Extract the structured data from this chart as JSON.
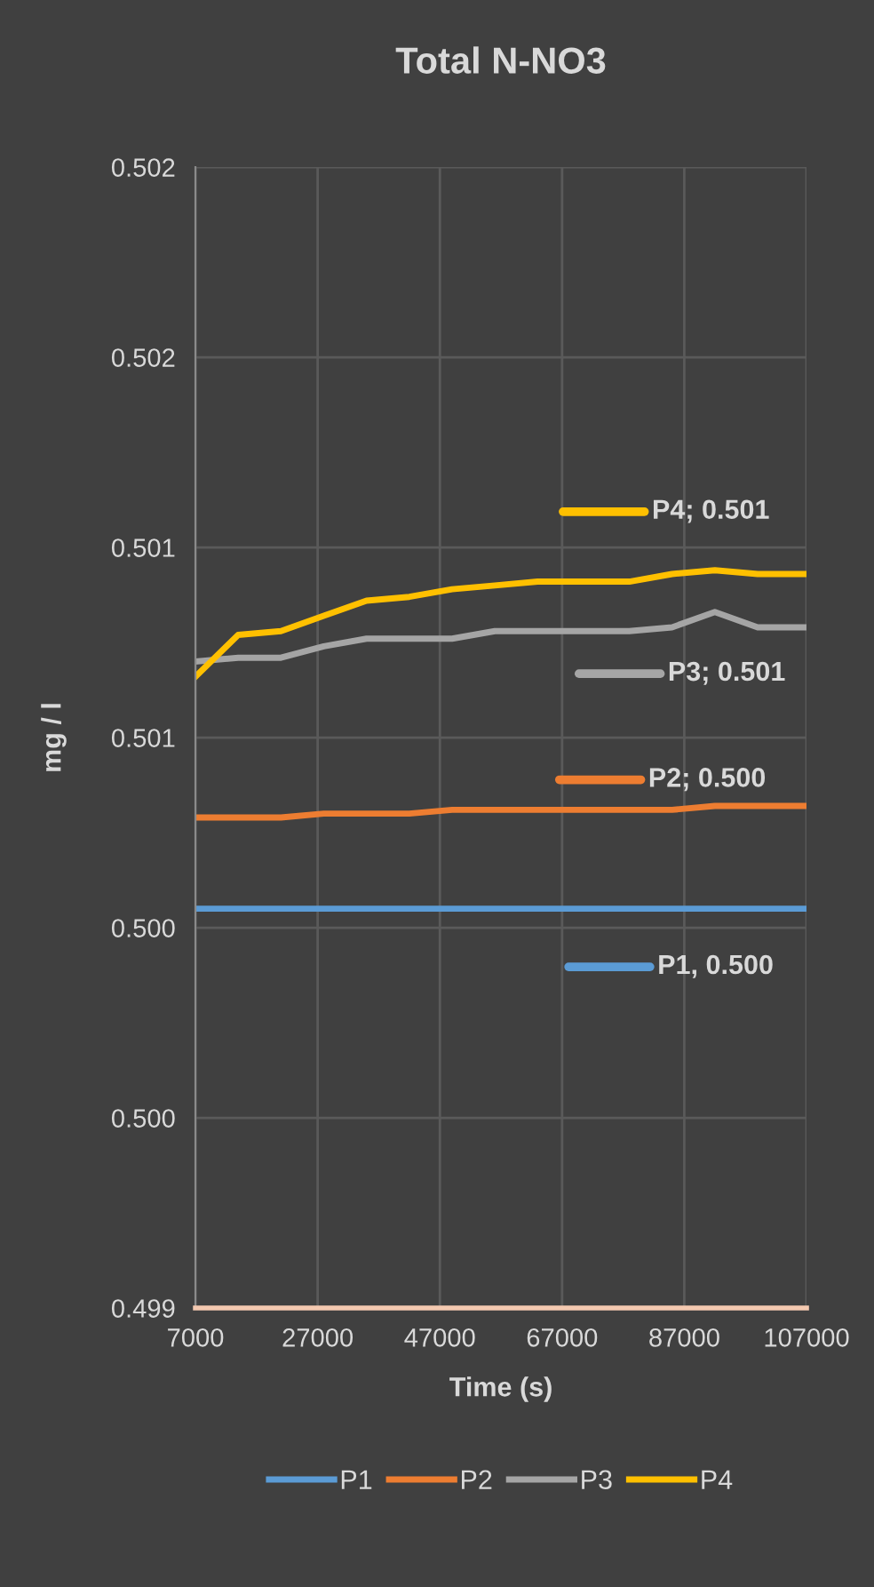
{
  "chart_data": {
    "type": "line",
    "title": "Total N-NO3",
    "xlabel": "Time (s)",
    "ylabel": "mg / l",
    "x": [
      7000,
      14000,
      21000,
      28000,
      35000,
      42000,
      49000,
      56000,
      63000,
      70000,
      78000,
      85000,
      92000,
      99000,
      107000
    ],
    "series": [
      {
        "name": "P1",
        "color": "#5b9bd5",
        "values": [
          0.50005,
          0.50005,
          0.50005,
          0.50005,
          0.50005,
          0.50005,
          0.50005,
          0.50005,
          0.50005,
          0.50005,
          0.50005,
          0.50005,
          0.50005,
          0.50005,
          0.50005
        ]
      },
      {
        "name": "P2",
        "color": "#ed7d31",
        "values": [
          0.50029,
          0.50029,
          0.50029,
          0.5003,
          0.5003,
          0.5003,
          0.50031,
          0.50031,
          0.50031,
          0.50031,
          0.50031,
          0.50031,
          0.50032,
          0.50032,
          0.50032
        ]
      },
      {
        "name": "P3",
        "color": "#a5a5a5",
        "values": [
          0.5007,
          0.50071,
          0.50071,
          0.50074,
          0.50076,
          0.50076,
          0.50076,
          0.50078,
          0.50078,
          0.50078,
          0.50078,
          0.50079,
          0.50083,
          0.50079,
          0.50079
        ]
      },
      {
        "name": "P4",
        "color": "#ffc000",
        "values": [
          0.50066,
          0.50077,
          0.50078,
          0.50082,
          0.50086,
          0.50087,
          0.50089,
          0.5009,
          0.50091,
          0.50091,
          0.50091,
          0.50093,
          0.50094,
          0.50093,
          0.50093
        ]
      }
    ],
    "annotations": [
      "P1, 0.500",
      "P2; 0.500",
      "P3; 0.501",
      "P4; 0.501"
    ],
    "xlim": [
      7000,
      107000
    ],
    "xticks": [
      7000,
      27000,
      47000,
      67000,
      87000,
      107000
    ],
    "ylim": [
      0.499,
      0.502
    ],
    "yticks": [
      {
        "value": 0.499,
        "label": "0.499"
      },
      {
        "value": 0.4995,
        "label": "0.500"
      },
      {
        "value": 0.5,
        "label": "0.500"
      },
      {
        "value": 0.5005,
        "label": "0.501"
      },
      {
        "value": 0.501,
        "label": "0.501"
      },
      {
        "value": 0.5015,
        "label": "0.502"
      },
      {
        "value": 0.502,
        "label": "0.502"
      }
    ],
    "grid": true,
    "legend": "bottom",
    "marker": "none",
    "line_style": "solid"
  }
}
